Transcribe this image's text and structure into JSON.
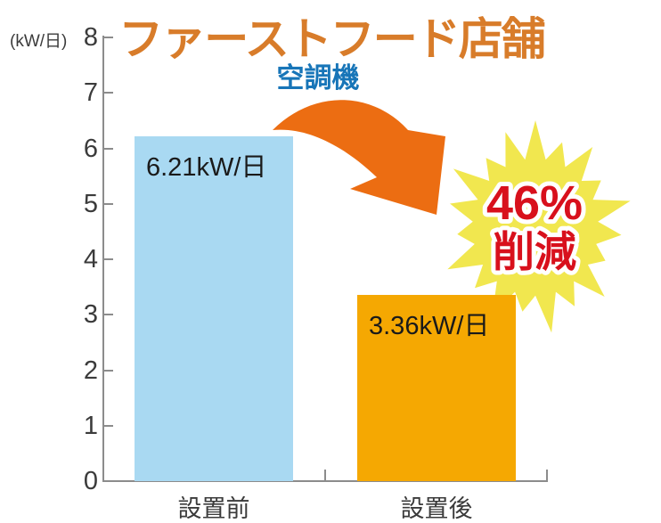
{
  "title": {
    "text": "ファーストフード店舗"
  },
  "subtitle": {
    "text": "空調機"
  },
  "badge": {
    "line1": "46%",
    "line2": "削減"
  },
  "axis": {
    "unit_label": "(kW/日)"
  },
  "colors": {
    "title": "#D87C2A",
    "subtitle": "#1775B8",
    "bar_before": "#A9D9F2",
    "bar_after": "#F5A802",
    "arrow": "#EC6D12",
    "burst": "#F1E74F",
    "badge_text": "#D8101C",
    "axis": "#8C8C8C",
    "ink": "#3B3B3B"
  },
  "chart_data": {
    "type": "bar",
    "categories": [
      "設置前",
      "設置後"
    ],
    "values": [
      6.21,
      3.36
    ],
    "bar_labels": [
      "6.21kW/日",
      "3.36kW/日"
    ],
    "bar_colors": [
      "#A9D9F2",
      "#F5A802"
    ],
    "title": "ファーストフード店舗",
    "subtitle": "空調機",
    "ylabel": "(kW/日)",
    "xlabel": "",
    "ylim": [
      0,
      8
    ],
    "yticks": [
      0,
      1,
      2,
      3,
      4,
      5,
      6,
      7,
      8
    ],
    "annotation": "46%削減",
    "legend": false,
    "grid": false
  }
}
